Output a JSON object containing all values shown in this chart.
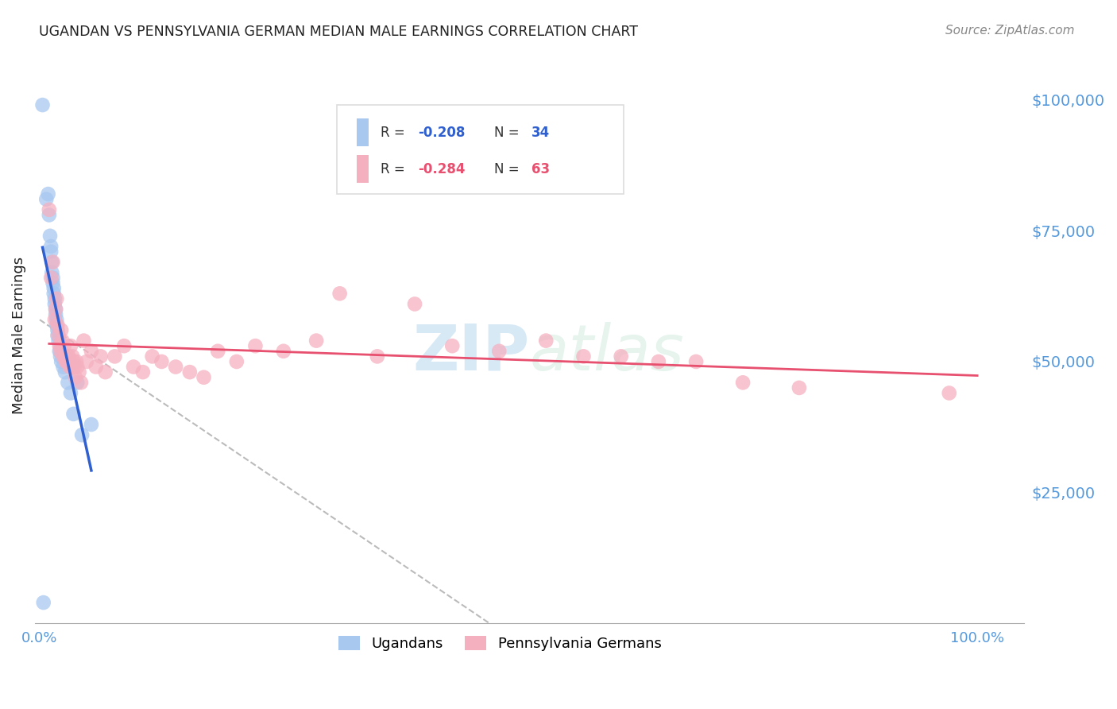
{
  "title": "UGANDAN VS PENNSYLVANIA GERMAN MEDIAN MALE EARNINGS CORRELATION CHART",
  "source": "Source: ZipAtlas.com",
  "ylabel": "Median Male Earnings",
  "y_tick_labels": [
    "$25,000",
    "$50,000",
    "$75,000",
    "$100,000"
  ],
  "y_tick_values": [
    25000,
    50000,
    75000,
    100000
  ],
  "y_min": 0,
  "y_max": 110000,
  "x_min": -0.005,
  "x_max": 1.05,
  "watermark_zip": "ZIP",
  "watermark_atlas": "atlas",
  "blue_scatter_x": [
    0.003,
    0.007,
    0.009,
    0.01,
    0.011,
    0.012,
    0.012,
    0.013,
    0.013,
    0.014,
    0.014,
    0.015,
    0.015,
    0.016,
    0.016,
    0.017,
    0.017,
    0.018,
    0.018,
    0.019,
    0.019,
    0.02,
    0.021,
    0.022,
    0.023,
    0.025,
    0.027,
    0.03,
    0.033,
    0.036,
    0.04,
    0.045,
    0.055,
    0.004
  ],
  "blue_scatter_y": [
    99000,
    81000,
    82000,
    78000,
    74000,
    72000,
    71000,
    69000,
    67000,
    66000,
    65000,
    64000,
    63000,
    62000,
    61000,
    60000,
    59000,
    58000,
    57000,
    56000,
    55000,
    54000,
    52000,
    51000,
    50000,
    49000,
    48000,
    46000,
    44000,
    40000,
    46000,
    36000,
    38000,
    4000
  ],
  "pink_scatter_x": [
    0.01,
    0.012,
    0.014,
    0.016,
    0.017,
    0.018,
    0.019,
    0.02,
    0.021,
    0.022,
    0.023,
    0.024,
    0.025,
    0.026,
    0.027,
    0.028,
    0.029,
    0.03,
    0.031,
    0.032,
    0.033,
    0.034,
    0.035,
    0.036,
    0.037,
    0.038,
    0.039,
    0.04,
    0.042,
    0.044,
    0.047,
    0.05,
    0.055,
    0.06,
    0.065,
    0.07,
    0.08,
    0.09,
    0.1,
    0.11,
    0.12,
    0.13,
    0.145,
    0.16,
    0.175,
    0.19,
    0.21,
    0.23,
    0.26,
    0.295,
    0.32,
    0.36,
    0.4,
    0.44,
    0.49,
    0.54,
    0.58,
    0.62,
    0.66,
    0.7,
    0.75,
    0.81,
    0.97
  ],
  "pink_scatter_y": [
    79000,
    66000,
    69000,
    58000,
    60000,
    62000,
    57000,
    55000,
    53000,
    52000,
    56000,
    54000,
    51000,
    53000,
    51000,
    50000,
    50000,
    51000,
    51000,
    49000,
    53000,
    49000,
    51000,
    50000,
    49000,
    47000,
    50000,
    49000,
    48000,
    46000,
    54000,
    50000,
    52000,
    49000,
    51000,
    48000,
    51000,
    53000,
    49000,
    48000,
    51000,
    50000,
    49000,
    48000,
    47000,
    52000,
    50000,
    53000,
    52000,
    54000,
    63000,
    51000,
    61000,
    53000,
    52000,
    54000,
    51000,
    51000,
    50000,
    50000,
    46000,
    45000,
    44000
  ],
  "blue_color": "#a8c8f0",
  "pink_color": "#f5b0c0",
  "blue_line_color": "#3060d0",
  "pink_line_color": "#e85070",
  "diagonal_line_color": "#bbbbbb",
  "background_color": "#ffffff",
  "grid_color": "#cccccc",
  "title_color": "#222222",
  "source_color": "#888888",
  "axis_label_color": "#5599dd",
  "ytick_color": "#5599dd",
  "legend_box_color": "#dddddd",
  "blue_r": "-0.208",
  "blue_n": "34",
  "pink_r": "-0.284",
  "pink_n": "63"
}
